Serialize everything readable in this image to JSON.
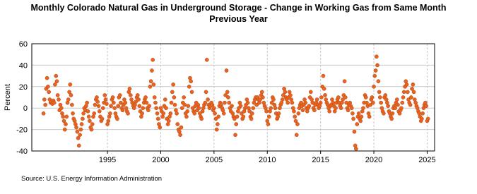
{
  "chart_data": {
    "type": "scatter",
    "title": "Monthly Colorado Natural Gas in Underground Storage - Change in Working Gas from Same Month Previous Year",
    "ylabel": "Percent",
    "source": "Source: U.S. Energy Information Administration",
    "color": "#e8641e",
    "xlim": [
      1987.9,
      2025.7
    ],
    "xticks": [
      1995,
      2000,
      2005,
      2010,
      2015,
      2020,
      2025
    ],
    "ylim": [
      -40,
      60
    ],
    "yticks": [
      -40,
      -20,
      0,
      20,
      40,
      60
    ],
    "grid": true,
    "x": [
      1989,
      1989.08,
      1989.17,
      1989.25,
      1989.33,
      1989.42,
      1989.5,
      1989.58,
      1989.67,
      1989.75,
      1989.83,
      1989.92,
      1990,
      1990.08,
      1990.17,
      1990.25,
      1990.33,
      1990.42,
      1990.5,
      1990.58,
      1990.67,
      1990.75,
      1990.83,
      1990.92,
      1991,
      1991.08,
      1991.17,
      1991.25,
      1991.33,
      1991.42,
      1991.5,
      1991.58,
      1991.67,
      1991.75,
      1991.83,
      1991.92,
      1992,
      1992.08,
      1992.17,
      1992.25,
      1992.33,
      1992.42,
      1992.5,
      1992.58,
      1992.67,
      1992.75,
      1992.83,
      1992.92,
      1993,
      1993.08,
      1993.17,
      1993.25,
      1993.33,
      1993.42,
      1993.5,
      1993.58,
      1993.67,
      1993.75,
      1993.83,
      1993.92,
      1994,
      1994.08,
      1994.17,
      1994.25,
      1994.33,
      1994.42,
      1994.5,
      1994.58,
      1994.67,
      1994.75,
      1994.83,
      1994.92,
      1995,
      1995.08,
      1995.17,
      1995.25,
      1995.33,
      1995.42,
      1995.5,
      1995.58,
      1995.67,
      1995.75,
      1995.83,
      1995.92,
      1996,
      1996.08,
      1996.17,
      1996.25,
      1996.33,
      1996.42,
      1996.5,
      1996.58,
      1996.67,
      1996.75,
      1996.83,
      1996.92,
      1997,
      1997.08,
      1997.17,
      1997.25,
      1997.33,
      1997.42,
      1997.5,
      1997.58,
      1997.67,
      1997.75,
      1997.83,
      1997.92,
      1998,
      1998.08,
      1998.17,
      1998.25,
      1998.33,
      1998.42,
      1998.5,
      1998.58,
      1998.67,
      1998.75,
      1998.83,
      1998.92,
      1999,
      1999.08,
      1999.17,
      1999.25,
      1999.33,
      1999.42,
      1999.5,
      1999.58,
      1999.67,
      1999.75,
      1999.83,
      1999.92,
      2000,
      2000.08,
      2000.17,
      2000.25,
      2000.33,
      2000.42,
      2000.5,
      2000.58,
      2000.67,
      2000.75,
      2000.83,
      2000.92,
      2001,
      2001.08,
      2001.17,
      2001.25,
      2001.33,
      2001.42,
      2001.5,
      2001.58,
      2001.67,
      2001.75,
      2001.83,
      2001.92,
      2002,
      2002.08,
      2002.17,
      2002.25,
      2002.33,
      2002.42,
      2002.5,
      2002.58,
      2002.67,
      2002.75,
      2002.83,
      2002.92,
      2003,
      2003.08,
      2003.17,
      2003.25,
      2003.33,
      2003.42,
      2003.5,
      2003.58,
      2003.67,
      2003.75,
      2003.83,
      2003.92,
      2004,
      2004.08,
      2004.17,
      2004.25,
      2004.33,
      2004.42,
      2004.5,
      2004.58,
      2004.67,
      2004.75,
      2004.83,
      2004.92,
      2005,
      2005.08,
      2005.17,
      2005.25,
      2005.33,
      2005.42,
      2005.5,
      2005.58,
      2005.67,
      2005.75,
      2005.83,
      2005.92,
      2006,
      2006.08,
      2006.17,
      2006.25,
      2006.33,
      2006.42,
      2006.5,
      2006.58,
      2006.67,
      2006.75,
      2006.83,
      2006.92,
      2007,
      2007.08,
      2007.17,
      2007.25,
      2007.33,
      2007.42,
      2007.5,
      2007.58,
      2007.67,
      2007.75,
      2007.83,
      2007.92,
      2008,
      2008.08,
      2008.17,
      2008.25,
      2008.33,
      2008.42,
      2008.5,
      2008.58,
      2008.67,
      2008.75,
      2008.83,
      2008.92,
      2009,
      2009.08,
      2009.17,
      2009.25,
      2009.33,
      2009.42,
      2009.5,
      2009.58,
      2009.67,
      2009.75,
      2009.83,
      2009.92,
      2010,
      2010.08,
      2010.17,
      2010.25,
      2010.33,
      2010.42,
      2010.5,
      2010.58,
      2010.67,
      2010.75,
      2010.83,
      2010.92,
      2011,
      2011.08,
      2011.17,
      2011.25,
      2011.33,
      2011.42,
      2011.5,
      2011.58,
      2011.67,
      2011.75,
      2011.83,
      2011.92,
      2012,
      2012.08,
      2012.17,
      2012.25,
      2012.33,
      2012.42,
      2012.5,
      2012.58,
      2012.67,
      2012.75,
      2012.83,
      2012.92,
      2013,
      2013.08,
      2013.17,
      2013.25,
      2013.33,
      2013.42,
      2013.5,
      2013.58,
      2013.67,
      2013.75,
      2013.83,
      2013.92,
      2014,
      2014.08,
      2014.17,
      2014.25,
      2014.33,
      2014.42,
      2014.5,
      2014.58,
      2014.67,
      2014.75,
      2014.83,
      2014.92,
      2015,
      2015.08,
      2015.17,
      2015.25,
      2015.33,
      2015.42,
      2015.5,
      2015.58,
      2015.67,
      2015.75,
      2015.83,
      2015.92,
      2016,
      2016.08,
      2016.17,
      2016.25,
      2016.33,
      2016.42,
      2016.5,
      2016.58,
      2016.67,
      2016.75,
      2016.83,
      2016.92,
      2017,
      2017.08,
      2017.17,
      2017.25,
      2017.33,
      2017.42,
      2017.5,
      2017.58,
      2017.67,
      2017.75,
      2017.83,
      2017.92,
      2018,
      2018.08,
      2018.17,
      2018.25,
      2018.33,
      2018.42,
      2018.5,
      2018.58,
      2018.67,
      2018.75,
      2018.83,
      2018.92,
      2019,
      2019.08,
      2019.17,
      2019.25,
      2019.33,
      2019.42,
      2019.5,
      2019.58,
      2019.67,
      2019.75,
      2019.83,
      2019.92,
      2020,
      2020.08,
      2020.17,
      2020.25,
      2020.33,
      2020.42,
      2020.5,
      2020.58,
      2020.67,
      2020.75,
      2020.83,
      2020.92,
      2021,
      2021.08,
      2021.17,
      2021.25,
      2021.33,
      2021.42,
      2021.5,
      2021.58,
      2021.67,
      2021.75,
      2021.83,
      2021.92,
      2022,
      2022.08,
      2022.17,
      2022.25,
      2022.33,
      2022.42,
      2022.5,
      2022.58,
      2022.67,
      2022.75,
      2022.83,
      2022.92,
      2023,
      2023.08,
      2023.17,
      2023.25,
      2023.33,
      2023.42,
      2023.5,
      2023.58,
      2023.67,
      2023.75,
      2023.83,
      2023.92,
      2024,
      2024.08,
      2024.17,
      2024.25,
      2024.33,
      2024.42,
      2024.5,
      2024.58,
      2024.67,
      2024.75,
      2024.83,
      2024.92,
      2025,
      2025.08
    ],
    "values": [
      -5,
      8,
      3,
      18,
      28,
      20,
      15,
      8,
      5,
      6,
      4,
      7,
      5,
      22,
      30,
      25,
      12,
      8,
      -2,
      3,
      0,
      -5,
      -8,
      -12,
      -20,
      -15,
      -8,
      5,
      8,
      15,
      22,
      12,
      3,
      -5,
      -10,
      -12,
      -15,
      -18,
      -22,
      -28,
      -35,
      -25,
      -20,
      -15,
      -10,
      -5,
      0,
      -2,
      2,
      5,
      -3,
      -8,
      -12,
      -18,
      -20,
      -15,
      -8,
      -5,
      3,
      8,
      10,
      6,
      2,
      -3,
      -8,
      -12,
      -10,
      0,
      5,
      12,
      8,
      4,
      -15,
      -12,
      -8,
      -5,
      2,
      8,
      10,
      5,
      0,
      -5,
      -8,
      -10,
      2,
      10,
      12,
      5,
      0,
      -2,
      3,
      8,
      5,
      0,
      -3,
      -5,
      15,
      18,
      12,
      8,
      5,
      2,
      0,
      3,
      6,
      10,
      12,
      8,
      2,
      -3,
      -8,
      -5,
      0,
      5,
      8,
      10,
      5,
      0,
      -2,
      2,
      20,
      25,
      35,
      45,
      22,
      10,
      5,
      0,
      -5,
      -10,
      -15,
      -18,
      0,
      -3,
      -8,
      -5,
      2,
      8,
      0,
      -10,
      -15,
      -12,
      -8,
      -5,
      5,
      15,
      22,
      10,
      3,
      -2,
      -5,
      -15,
      -20,
      -22,
      -25,
      -18,
      0,
      5,
      10,
      3,
      -5,
      -8,
      -3,
      2,
      20,
      28,
      25,
      15,
      0,
      -3,
      -5,
      2,
      5,
      -2,
      3,
      0,
      -5,
      -8,
      -10,
      -3,
      0,
      3,
      5,
      15,
      45,
      8,
      3,
      0,
      2,
      5,
      3,
      -2,
      0,
      -5,
      -10,
      -20,
      -15,
      -8,
      2,
      5,
      3,
      0,
      -2,
      -5,
      5,
      12,
      35,
      15,
      10,
      5,
      0,
      -3,
      2,
      -5,
      -8,
      -10,
      -25,
      -15,
      -8,
      -3,
      0,
      5,
      2,
      -5,
      -10,
      -8,
      -3,
      0,
      3,
      8,
      5,
      0,
      -3,
      -8,
      -10,
      -5,
      0,
      5,
      8,
      10,
      3,
      10,
      8,
      5,
      8,
      12,
      15,
      10,
      5,
      2,
      0,
      -3,
      -12,
      -15,
      -8,
      -3,
      0,
      5,
      10,
      8,
      3,
      0,
      -5,
      -10,
      -8,
      -5,
      0,
      3,
      5,
      8,
      12,
      18,
      15,
      10,
      8,
      5,
      10,
      15,
      12,
      8,
      5,
      0,
      -3,
      -8,
      -12,
      -25,
      -15,
      -5,
      0,
      3,
      5,
      2,
      -2,
      3,
      8,
      5,
      0,
      -3,
      0,
      2,
      10,
      15,
      8,
      5,
      0,
      -2,
      3,
      5,
      8,
      3,
      0,
      2,
      5,
      10,
      20,
      30,
      18,
      12,
      8,
      5,
      3,
      0,
      -3,
      2,
      3,
      8,
      5,
      2,
      -3,
      0,
      5,
      8,
      10,
      5,
      2,
      0,
      5,
      8,
      12,
      25,
      10,
      5,
      0,
      -2,
      3,
      5,
      2,
      0,
      -5,
      -10,
      -22,
      -35,
      -38,
      -15,
      -8,
      -5,
      -10,
      -12,
      -8,
      -3,
      0,
      5,
      12,
      10,
      5,
      2,
      -5,
      -8,
      3,
      8,
      10,
      5,
      20,
      30,
      35,
      48,
      40,
      25,
      15,
      10,
      5,
      0,
      -3,
      -5,
      10,
      12,
      8,
      5,
      2,
      -3,
      -5,
      -8,
      -10,
      -5,
      0,
      2,
      0,
      5,
      8,
      3,
      -3,
      -5,
      -2,
      0,
      5,
      10,
      15,
      20,
      25,
      22,
      15,
      8,
      5,
      3,
      10,
      18,
      22,
      15,
      8,
      5,
      2,
      0,
      -3,
      -5,
      -8,
      -12,
      -10,
      -5,
      0,
      3,
      5,
      2,
      -12,
      -10
    ]
  }
}
